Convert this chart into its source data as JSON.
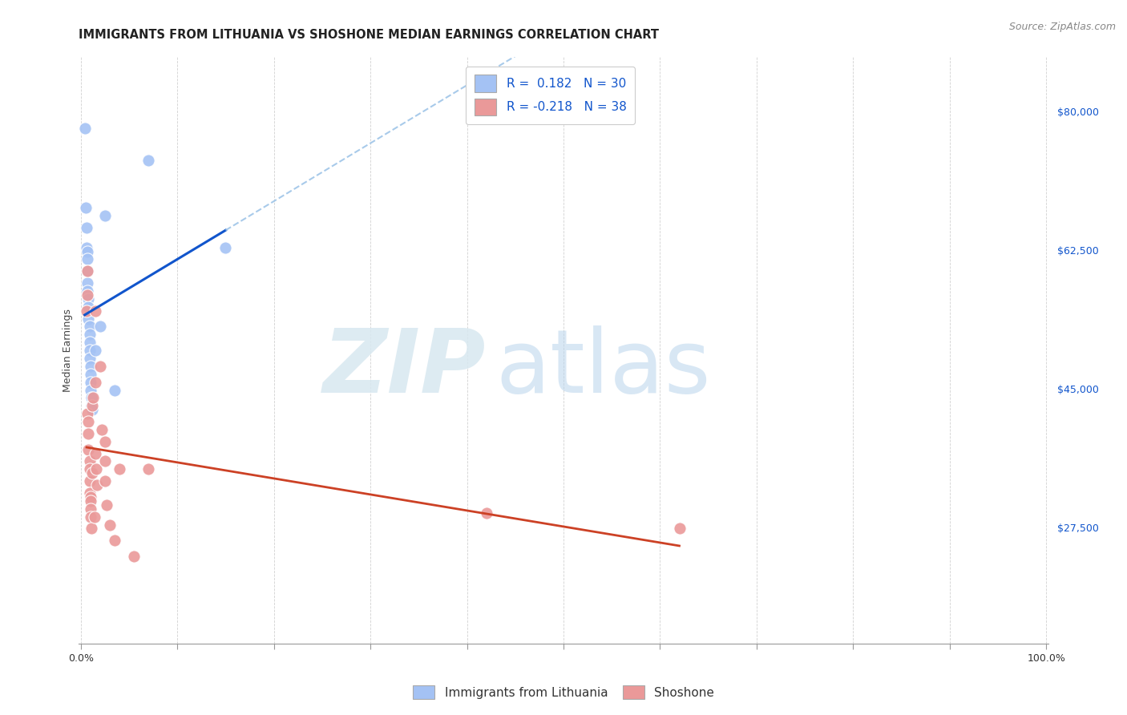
{
  "title": "IMMIGRANTS FROM LITHUANIA VS SHOSHONE MEDIAN EARNINGS CORRELATION CHART",
  "source": "Source: ZipAtlas.com",
  "ylabel": "Median Earnings",
  "y_ticks": [
    27500,
    45000,
    62500,
    80000
  ],
  "y_tick_labels": [
    "$27,500",
    "$45,000",
    "$62,500",
    "$80,000"
  ],
  "ylim": [
    13000,
    87000
  ],
  "xlim": [
    -0.002,
    1.002
  ],
  "blue_color": "#a4c2f4",
  "pink_color": "#ea9999",
  "blue_line_color": "#1155cc",
  "pink_line_color": "#cc4125",
  "dashed_line_color": "#9fc5e8",
  "background_color": "#ffffff",
  "grid_color": "#cccccc",
  "blue_points_x": [
    0.004,
    0.005,
    0.006,
    0.006,
    0.007,
    0.007,
    0.007,
    0.007,
    0.007,
    0.008,
    0.008,
    0.008,
    0.009,
    0.009,
    0.009,
    0.009,
    0.009,
    0.01,
    0.01,
    0.01,
    0.01,
    0.011,
    0.011,
    0.012,
    0.015,
    0.02,
    0.025,
    0.035,
    0.07,
    0.15
  ],
  "blue_points_y": [
    78000,
    68000,
    65500,
    63000,
    62500,
    61500,
    60000,
    58500,
    57500,
    56500,
    55500,
    54000,
    53000,
    52000,
    51000,
    50000,
    49000,
    48000,
    47000,
    46000,
    45000,
    44000,
    43000,
    42500,
    50000,
    53000,
    67000,
    45000,
    74000,
    63000
  ],
  "pink_points_x": [
    0.006,
    0.007,
    0.007,
    0.007,
    0.008,
    0.008,
    0.008,
    0.009,
    0.009,
    0.009,
    0.009,
    0.01,
    0.01,
    0.01,
    0.01,
    0.011,
    0.012,
    0.012,
    0.013,
    0.014,
    0.015,
    0.015,
    0.015,
    0.016,
    0.017,
    0.02,
    0.022,
    0.025,
    0.025,
    0.025,
    0.027,
    0.03,
    0.035,
    0.04,
    0.055,
    0.07,
    0.42,
    0.62
  ],
  "pink_points_y": [
    55000,
    60000,
    57000,
    42000,
    41000,
    39500,
    37500,
    36000,
    35000,
    33500,
    32000,
    31500,
    31000,
    30000,
    29000,
    27500,
    43000,
    34500,
    44000,
    29000,
    55000,
    46000,
    37000,
    35000,
    33000,
    48000,
    40000,
    38500,
    36000,
    33500,
    30500,
    28000,
    26000,
    35000,
    24000,
    35000,
    29500,
    27500
  ],
  "title_fontsize": 10.5,
  "axis_label_fontsize": 9,
  "tick_fontsize": 9,
  "source_fontsize": 9,
  "legend_fontsize": 11
}
